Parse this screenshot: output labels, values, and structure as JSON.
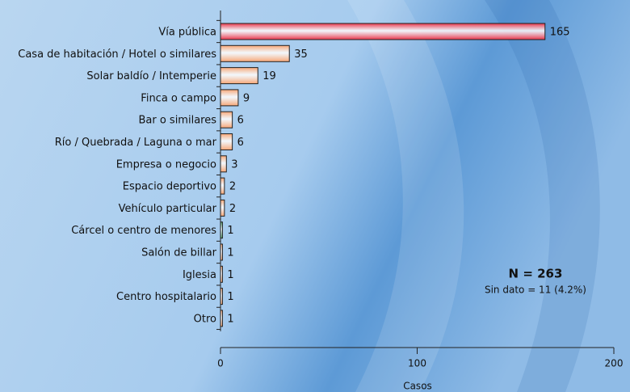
{
  "chart_data": {
    "type": "barh",
    "categories": [
      "Vía pública",
      "Casa de habitación / Hotel o similares",
      "Solar baldío / Intemperie",
      "Finca o campo",
      "Bar o similares",
      "Río / Quebrada / Laguna o mar",
      "Empresa o negocio",
      "Espacio deportivo",
      "Vehículo particular",
      "Cárcel o centro de menores",
      "Salón de billar",
      "Iglesia",
      "Centro hospitalario",
      "Otro"
    ],
    "values": [
      165,
      35,
      19,
      9,
      6,
      6,
      3,
      2,
      2,
      1,
      1,
      1,
      1,
      1
    ],
    "colors": [
      "#e8354a",
      "#f6a676",
      "#f6a676",
      "#f6a676",
      "#f6a676",
      "#f6a676",
      "#f6a676",
      "#f6a676",
      "#f6a676",
      "#4f9f6a",
      "#f6a676",
      "#f6a676",
      "#f6a676",
      "#f6a676"
    ],
    "xlabel": "Casos",
    "xlim": [
      0,
      200
    ],
    "xticks": [
      0,
      100,
      200
    ],
    "annotations": [
      "N = 263",
      "Sin dato = 11 (4.2%)"
    ]
  }
}
